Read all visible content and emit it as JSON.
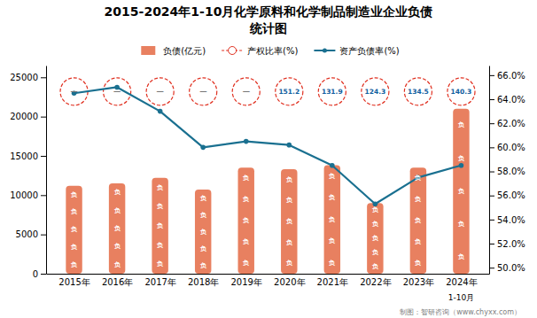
{
  "chart_data": {
    "type": "bar",
    "title": "2015-2024年1-10月化学原料和化学制品制造业企业负债",
    "subtitle": "统计图",
    "categories": [
      "2015年",
      "2016年",
      "2017年",
      "2018年",
      "2019年",
      "2020年",
      "2021年",
      "2022年",
      "2023年",
      "2024年"
    ],
    "series": [
      {
        "name": "负债(亿元)",
        "type": "bar",
        "color": "#E88060",
        "mark_label": "负",
        "values": [
          11200,
          11500,
          12200,
          10700,
          13500,
          13300,
          13800,
          9000,
          13500,
          21000
        ]
      },
      {
        "name": "产权比率(%)",
        "type": "label",
        "color": "#E03020",
        "marker": "circle",
        "line_style": "dashed",
        "data_labels": true,
        "values": [
          null,
          null,
          null,
          null,
          null,
          151.2,
          131.9,
          124.3,
          134.5,
          140.3
        ],
        "value_labels": [
          "−",
          "−",
          "−",
          "−",
          "−",
          "151.2",
          "131.9",
          "124.3",
          "134.5",
          "140.3"
        ]
      },
      {
        "name": "资产负债率(%)",
        "type": "line",
        "axis": "y2",
        "color": "#1A7090",
        "marker": "circle",
        "values": [
          0.645,
          0.65,
          0.63,
          0.6,
          0.605,
          0.602,
          0.585,
          0.553,
          0.575,
          0.585
        ]
      }
    ],
    "ylim": [
      0,
      26500
    ],
    "yticks": [
      0,
      5000,
      10000,
      15000,
      20000,
      25000
    ],
    "y2lim": [
      0.495,
      0.668
    ],
    "y2ticks": [
      {
        "value": 0.5,
        "label": "50.0%"
      },
      {
        "value": 0.52,
        "label": "52.0%"
      },
      {
        "value": 0.54,
        "label": "54.0%"
      },
      {
        "value": 0.56,
        "label": "56.0%"
      },
      {
        "value": 0.58,
        "label": "58.0%"
      },
      {
        "value": 0.6,
        "label": "60.0%"
      },
      {
        "value": 0.62,
        "label": "62.0%"
      },
      {
        "value": 0.64,
        "label": "64.0%"
      },
      {
        "value": 0.66,
        "label": "66.0%"
      }
    ],
    "annotations": [
      {
        "text": "1-10月",
        "x": "2024年"
      },
      {
        "text": "制图：智研咨询（www.chyxx.com）"
      }
    ],
    "grid": false,
    "legend": "top"
  }
}
